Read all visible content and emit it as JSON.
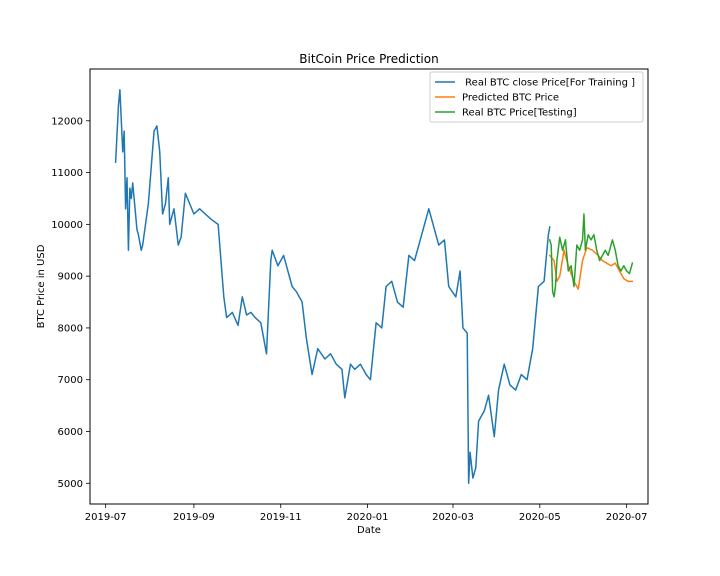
{
  "chart_data": {
    "type": "line",
    "title": "BitCoin Price Prediction",
    "xlabel": "Date",
    "ylabel": "BTC Price in USD",
    "xlim": [
      "2019-06-20",
      "2020-07-16"
    ],
    "ylim": [
      4600,
      13000
    ],
    "x_ticks": [
      "2019-07",
      "2019-09",
      "2019-11",
      "2020-01",
      "2020-03",
      "2020-05",
      "2020-07"
    ],
    "x_tick_dates": [
      "2019-07-01",
      "2019-09-01",
      "2019-11-01",
      "2020-01-01",
      "2020-03-01",
      "2020-05-01",
      "2020-07-01"
    ],
    "y_ticks": [
      5000,
      6000,
      7000,
      8000,
      9000,
      10000,
      11000,
      12000
    ],
    "grid": false,
    "legend_position": "top-right",
    "colors": {
      "training": "#1f77b4",
      "predicted": "#ff7f0e",
      "testing": "#2ca02c"
    },
    "series": [
      {
        "name": " Real BTC close Price[For Training ]",
        "color": "#1f77b4",
        "points": [
          [
            "2019-07-08",
            11200
          ],
          [
            "2019-07-10",
            12300
          ],
          [
            "2019-07-11",
            12600
          ],
          [
            "2019-07-13",
            11400
          ],
          [
            "2019-07-14",
            11800
          ],
          [
            "2019-07-15",
            10300
          ],
          [
            "2019-07-16",
            10900
          ],
          [
            "2019-07-17",
            9500
          ],
          [
            "2019-07-18",
            10700
          ],
          [
            "2019-07-19",
            10500
          ],
          [
            "2019-07-20",
            10800
          ],
          [
            "2019-07-23",
            9900
          ],
          [
            "2019-07-24",
            9800
          ],
          [
            "2019-07-26",
            9500
          ],
          [
            "2019-07-27",
            9600
          ],
          [
            "2019-07-31",
            10400
          ],
          [
            "2019-08-04",
            11800
          ],
          [
            "2019-08-06",
            11900
          ],
          [
            "2019-08-08",
            11400
          ],
          [
            "2019-08-10",
            10200
          ],
          [
            "2019-08-12",
            10400
          ],
          [
            "2019-08-14",
            10900
          ],
          [
            "2019-08-15",
            10000
          ],
          [
            "2019-08-18",
            10300
          ],
          [
            "2019-08-21",
            9600
          ],
          [
            "2019-08-23",
            9750
          ],
          [
            "2019-08-26",
            10600
          ],
          [
            "2019-08-29",
            10400
          ],
          [
            "2019-09-01",
            10200
          ],
          [
            "2019-09-05",
            10300
          ],
          [
            "2019-09-09",
            10200
          ],
          [
            "2019-09-13",
            10100
          ],
          [
            "2019-09-18",
            10000
          ],
          [
            "2019-09-22",
            8600
          ],
          [
            "2019-09-24",
            8200
          ],
          [
            "2019-09-28",
            8300
          ],
          [
            "2019-10-02",
            8050
          ],
          [
            "2019-10-05",
            8600
          ],
          [
            "2019-10-08",
            8250
          ],
          [
            "2019-10-11",
            8300
          ],
          [
            "2019-10-14",
            8200
          ],
          [
            "2019-10-18",
            8100
          ],
          [
            "2019-10-22",
            7500
          ],
          [
            "2019-10-25",
            9300
          ],
          [
            "2019-10-26",
            9500
          ],
          [
            "2019-10-30",
            9200
          ],
          [
            "2019-11-03",
            9400
          ],
          [
            "2019-11-06",
            9100
          ],
          [
            "2019-11-09",
            8800
          ],
          [
            "2019-11-12",
            8700
          ],
          [
            "2019-11-16",
            8500
          ],
          [
            "2019-11-19",
            7800
          ],
          [
            "2019-11-23",
            7100
          ],
          [
            "2019-11-27",
            7600
          ],
          [
            "2019-12-02",
            7400
          ],
          [
            "2019-12-06",
            7500
          ],
          [
            "2019-12-10",
            7300
          ],
          [
            "2019-12-14",
            7200
          ],
          [
            "2019-12-16",
            6650
          ],
          [
            "2019-12-20",
            7300
          ],
          [
            "2019-12-23",
            7200
          ],
          [
            "2019-12-27",
            7300
          ],
          [
            "2019-12-31",
            7100
          ],
          [
            "2020-01-03",
            7000
          ],
          [
            "2020-01-07",
            8100
          ],
          [
            "2020-01-11",
            8000
          ],
          [
            "2020-01-14",
            8800
          ],
          [
            "2020-01-18",
            8900
          ],
          [
            "2020-01-22",
            8500
          ],
          [
            "2020-01-26",
            8400
          ],
          [
            "2020-01-30",
            9400
          ],
          [
            "2020-02-03",
            9300
          ],
          [
            "2020-02-07",
            9700
          ],
          [
            "2020-02-11",
            10100
          ],
          [
            "2020-02-13",
            10300
          ],
          [
            "2020-02-16",
            10000
          ],
          [
            "2020-02-20",
            9600
          ],
          [
            "2020-02-24",
            9700
          ],
          [
            "2020-02-27",
            8800
          ],
          [
            "2020-03-03",
            8600
          ],
          [
            "2020-03-06",
            9100
          ],
          [
            "2020-03-08",
            8000
          ],
          [
            "2020-03-11",
            7900
          ],
          [
            "2020-03-12",
            5000
          ],
          [
            "2020-03-13",
            5600
          ],
          [
            "2020-03-15",
            5100
          ],
          [
            "2020-03-17",
            5300
          ],
          [
            "2020-03-19",
            6200
          ],
          [
            "2020-03-23",
            6400
          ],
          [
            "2020-03-26",
            6700
          ],
          [
            "2020-03-30",
            5900
          ],
          [
            "2020-04-02",
            6800
          ],
          [
            "2020-04-06",
            7300
          ],
          [
            "2020-04-10",
            6900
          ],
          [
            "2020-04-14",
            6800
          ],
          [
            "2020-04-18",
            7100
          ],
          [
            "2020-04-22",
            7000
          ],
          [
            "2020-04-26",
            7600
          ],
          [
            "2020-04-30",
            8800
          ],
          [
            "2020-05-04",
            8900
          ],
          [
            "2020-05-07",
            9800
          ],
          [
            "2020-05-08",
            9950
          ]
        ]
      },
      {
        "name": "Predicted BTC Price",
        "color": "#ff7f0e",
        "points": [
          [
            "2020-05-08",
            9400
          ],
          [
            "2020-05-11",
            9300
          ],
          [
            "2020-05-13",
            8900
          ],
          [
            "2020-05-15",
            9000
          ],
          [
            "2020-05-18",
            9500
          ],
          [
            "2020-05-21",
            9200
          ],
          [
            "2020-05-25",
            8900
          ],
          [
            "2020-05-28",
            8750
          ],
          [
            "2020-05-31",
            9300
          ],
          [
            "2020-06-03",
            9550
          ],
          [
            "2020-06-07",
            9500
          ],
          [
            "2020-06-11",
            9400
          ],
          [
            "2020-06-14",
            9300
          ],
          [
            "2020-06-17",
            9250
          ],
          [
            "2020-06-20",
            9200
          ],
          [
            "2020-06-23",
            9250
          ],
          [
            "2020-06-26",
            9100
          ],
          [
            "2020-06-29",
            8950
          ],
          [
            "2020-07-02",
            8900
          ],
          [
            "2020-07-05",
            8900
          ]
        ]
      },
      {
        "name": "Real BTC Price[Testing]",
        "color": "#2ca02c",
        "points": [
          [
            "2020-05-08",
            9700
          ],
          [
            "2020-05-09",
            9600
          ],
          [
            "2020-05-10",
            8700
          ],
          [
            "2020-05-11",
            8600
          ],
          [
            "2020-05-12",
            8800
          ],
          [
            "2020-05-13",
            9300
          ],
          [
            "2020-05-15",
            9750
          ],
          [
            "2020-05-17",
            9500
          ],
          [
            "2020-05-19",
            9700
          ],
          [
            "2020-05-21",
            9100
          ],
          [
            "2020-05-23",
            9200
          ],
          [
            "2020-05-25",
            8800
          ],
          [
            "2020-05-27",
            9600
          ],
          [
            "2020-05-29",
            9500
          ],
          [
            "2020-05-31",
            9700
          ],
          [
            "2020-06-01",
            10200
          ],
          [
            "2020-06-02",
            9500
          ],
          [
            "2020-06-04",
            9800
          ],
          [
            "2020-06-06",
            9700
          ],
          [
            "2020-06-08",
            9800
          ],
          [
            "2020-06-10",
            9500
          ],
          [
            "2020-06-12",
            9300
          ],
          [
            "2020-06-14",
            9400
          ],
          [
            "2020-06-16",
            9500
          ],
          [
            "2020-06-18",
            9400
          ],
          [
            "2020-06-21",
            9700
          ],
          [
            "2020-06-23",
            9500
          ],
          [
            "2020-06-25",
            9200
          ],
          [
            "2020-06-27",
            9100
          ],
          [
            "2020-06-29",
            9200
          ],
          [
            "2020-07-01",
            9100
          ],
          [
            "2020-07-03",
            9050
          ],
          [
            "2020-07-05",
            9250
          ]
        ]
      }
    ]
  }
}
